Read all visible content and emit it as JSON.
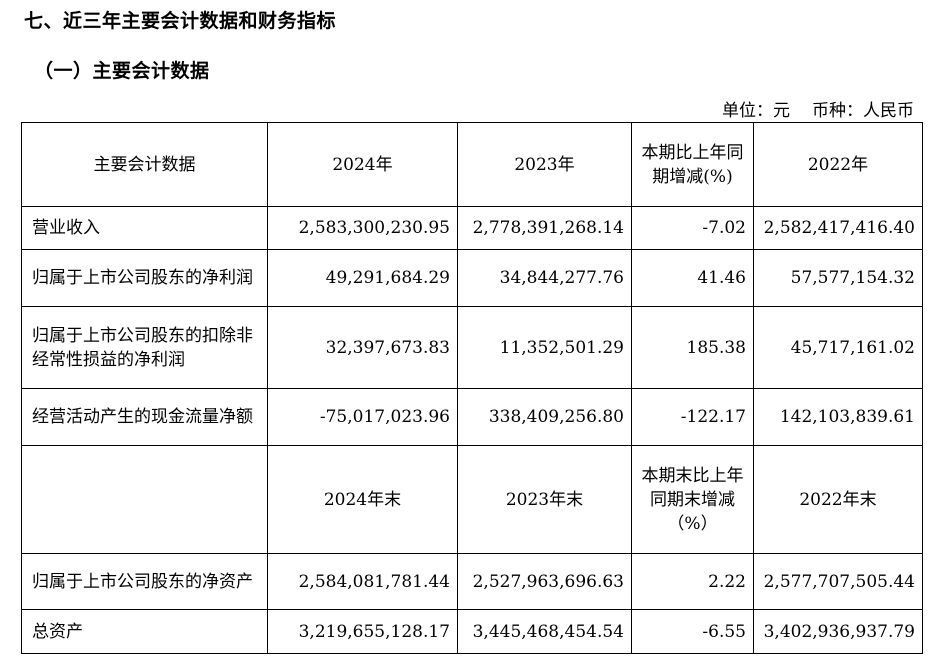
{
  "section_title": "七、近三年主要会计数据和财务指标",
  "subsection_title": "（一）主要会计数据",
  "unit_label": "单位：元",
  "currency_label": "币种：人民币",
  "header1": [
    "主要会计数据",
    "2024年",
    "2023年",
    "本期比上年同期增减(%)",
    "2022年"
  ],
  "header2": [
    "",
    "2024年末",
    "2023年末",
    "本期末比上年同期末增减（%）",
    "2022年末"
  ],
  "rows": [
    {
      "label": "营业收入",
      "v2024": "2,583,300,230.95",
      "v2023": "2,778,391,268.14",
      "change": "-7.02",
      "v2022": "2,582,417,416.40"
    },
    {
      "label": "归属于上市公司股东的净利润",
      "v2024": "49,291,684.29",
      "v2023": "34,844,277.76",
      "change": "41.46",
      "v2022": "57,577,154.32"
    },
    {
      "label": "归属于上市公司股东的扣除非经常性损益的净利润",
      "v2024": "32,397,673.83",
      "v2023": "11,352,501.29",
      "change": "185.38",
      "v2022": "45,717,161.02"
    },
    {
      "label": "经营活动产生的现金流量净额",
      "v2024": "-75,017,023.96",
      "v2023": "338,409,256.80",
      "change": "-122.17",
      "v2022": "142,103,839.61"
    },
    {
      "label": "归属于上市公司股东的净资产",
      "v2024": "2,584,081,781.44",
      "v2023": "2,527,963,696.63",
      "change": "2.22",
      "v2022": "2,577,707,505.44"
    },
    {
      "label": "总资产",
      "v2024": "3,219,655,128.17",
      "v2023": "3,445,468,454.54",
      "change": "-6.55",
      "v2022": "3,402,936,937.79"
    }
  ]
}
